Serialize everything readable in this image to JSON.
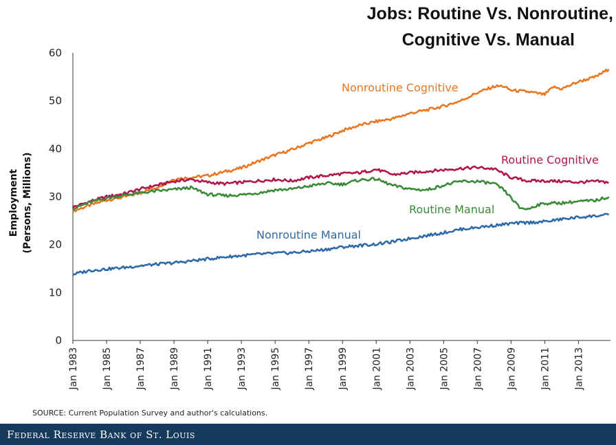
{
  "chart_data": {
    "type": "line",
    "title_lines": [
      "Jobs: Routine Vs. Nonroutine,",
      "Cognitive Vs. Manual"
    ],
    "xlabel": "",
    "ylabel_lines": [
      "Employment",
      "(Persons, Millions)"
    ],
    "ylim": [
      0,
      60
    ],
    "yticks": [
      0,
      10,
      20,
      30,
      40,
      50,
      60
    ],
    "xlim": [
      1983.0,
      2014.9
    ],
    "xticks": [
      {
        "value": 1983,
        "label": "Jan 1983"
      },
      {
        "value": 1985,
        "label": "Jan 1985"
      },
      {
        "value": 1987,
        "label": "Jan 1987"
      },
      {
        "value": 1989,
        "label": "Jan 1989"
      },
      {
        "value": 1991,
        "label": "Jan 1991"
      },
      {
        "value": 1993,
        "label": "Jan 1993"
      },
      {
        "value": 1995,
        "label": "Jan 1995"
      },
      {
        "value": 1997,
        "label": "Jan 1997"
      },
      {
        "value": 1999,
        "label": "Jan 1999"
      },
      {
        "value": 2001,
        "label": "Jan 2001"
      },
      {
        "value": 2003,
        "label": "Jan 2003"
      },
      {
        "value": 2005,
        "label": "Jan 2005"
      },
      {
        "value": 2007,
        "label": "Jan 2007"
      },
      {
        "value": 2009,
        "label": "Jan 2009"
      },
      {
        "value": 2011,
        "label": "Jan 2011"
      },
      {
        "value": 2013,
        "label": "Jan 2013"
      }
    ],
    "grid": false,
    "series": [
      {
        "name": "Nonroutine Cognitive",
        "color": "#e87722",
        "x": [
          1983,
          1984,
          1985,
          1986,
          1987,
          1988,
          1989,
          1990,
          1991,
          1992,
          1993,
          1994,
          1995,
          1996,
          1997,
          1998,
          1999,
          2000,
          2001,
          2002,
          2003,
          2004,
          2005,
          2006,
          2007,
          2008,
          2008.5,
          2009,
          2010,
          2011,
          2011.5,
          2012,
          2013,
          2014,
          2014.8
        ],
        "y": [
          27.0,
          28.2,
          29.3,
          29.9,
          30.8,
          32.0,
          33.7,
          34.0,
          34.4,
          35.2,
          36.0,
          37.4,
          38.7,
          39.8,
          41.2,
          42.3,
          43.8,
          44.9,
          45.7,
          46.3,
          47.4,
          48.1,
          48.9,
          50.0,
          51.7,
          53.0,
          53.1,
          52.2,
          51.9,
          51.3,
          52.9,
          52.5,
          54.0,
          55.0,
          56.6
        ]
      },
      {
        "name": "Routine Cognitive",
        "color": "#b0154d",
        "x": [
          1983,
          1984,
          1985,
          1986,
          1987,
          1988,
          1989,
          1990,
          1991,
          1992,
          1993,
          1994,
          1995,
          1996,
          1997,
          1998,
          1999,
          2000,
          2001,
          2002,
          2003,
          2004,
          2005,
          2006,
          2007,
          2008,
          2009,
          2010,
          2011,
          2012,
          2013,
          2014,
          2014.8
        ],
        "y": [
          27.8,
          29.0,
          30.0,
          30.6,
          31.6,
          32.4,
          33.2,
          33.6,
          33.0,
          32.7,
          33.0,
          33.3,
          33.6,
          33.3,
          34.0,
          34.4,
          34.8,
          35.0,
          35.7,
          34.6,
          35.0,
          35.3,
          35.6,
          35.9,
          36.1,
          35.8,
          34.0,
          33.3,
          33.3,
          33.2,
          33.0,
          33.2,
          33.0
        ]
      },
      {
        "name": "Routine Manual",
        "color": "#3a8a3a",
        "x": [
          1983,
          1984,
          1985,
          1986,
          1987,
          1988,
          1989,
          1990,
          1991,
          1992,
          1993,
          1994,
          1995,
          1996,
          1997,
          1998,
          1999,
          2000,
          2001,
          2002,
          2003,
          2004,
          2005,
          2006,
          2007,
          2008,
          2008.5,
          2009,
          2009.5,
          2010,
          2010.5,
          2011,
          2012,
          2013,
          2014,
          2014.8
        ],
        "y": [
          27.5,
          28.8,
          29.7,
          30.3,
          30.8,
          31.2,
          31.5,
          31.9,
          30.5,
          30.2,
          30.4,
          30.8,
          31.4,
          31.6,
          32.2,
          32.8,
          32.6,
          33.5,
          33.7,
          32.3,
          31.6,
          31.4,
          32.4,
          33.2,
          33.2,
          32.7,
          31.6,
          29.8,
          27.7,
          27.4,
          28.2,
          28.6,
          28.7,
          29.0,
          29.2,
          30.0
        ]
      },
      {
        "name": "Nonroutine Manual",
        "color": "#2e6aa6",
        "x": [
          1983,
          1984,
          1985,
          1986,
          1987,
          1988,
          1989,
          1990,
          1991,
          1992,
          1993,
          1994,
          1995,
          1996,
          1997,
          1998,
          1999,
          2000,
          2001,
          2002,
          2003,
          2004,
          2005,
          2006,
          2007,
          2008,
          2009,
          2010,
          2011,
          2012,
          2013,
          2014,
          2014.8
        ],
        "y": [
          13.8,
          14.6,
          14.9,
          15.2,
          15.6,
          15.9,
          16.2,
          16.6,
          17.0,
          17.4,
          17.7,
          18.0,
          18.2,
          18.3,
          18.6,
          19.0,
          19.5,
          19.8,
          20.1,
          20.6,
          21.3,
          21.9,
          22.5,
          23.2,
          23.6,
          24.0,
          24.4,
          24.6,
          24.8,
          25.3,
          25.7,
          26.0,
          26.2
        ]
      }
    ]
  },
  "source": "SOURCE: Current Population Survey and author's calculations.",
  "footer": "Federal Reserve Bank of St. Louis"
}
